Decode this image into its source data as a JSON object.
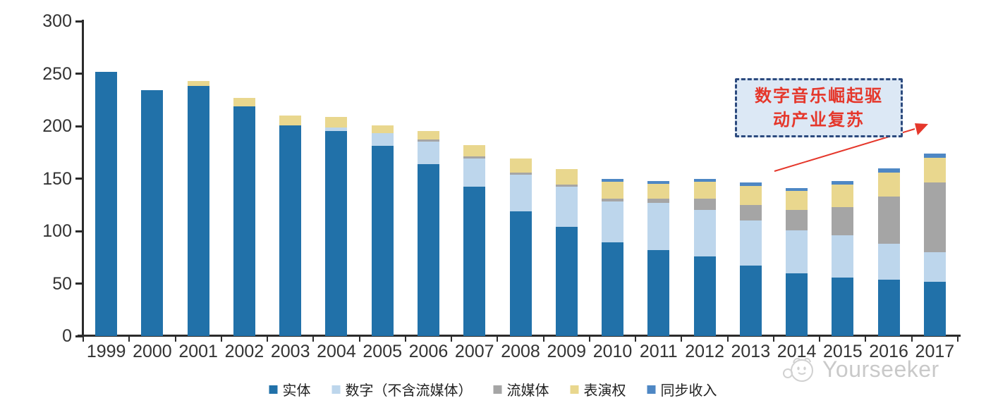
{
  "chart_data": {
    "type": "bar",
    "subtype": "stacked-vertical",
    "title": "",
    "categories": [
      "1999",
      "2000",
      "2001",
      "2002",
      "2003",
      "2004",
      "2005",
      "2006",
      "2007",
      "2008",
      "2009",
      "2010",
      "2011",
      "2012",
      "2013",
      "2014",
      "2015",
      "2016",
      "2017"
    ],
    "series": [
      {
        "key": "physical",
        "name": "实体",
        "color": "#2171a9",
        "values": [
          252,
          234,
          238,
          219,
          201,
          195,
          181,
          164,
          142,
          119,
          104,
          89,
          82,
          76,
          67,
          60,
          56,
          54,
          52
        ]
      },
      {
        "key": "digital-excl-streaming",
        "name": "数字（不含流媒体）",
        "color": "#bdd6ec",
        "values": [
          0,
          0,
          0,
          0,
          0,
          4,
          12,
          21,
          27,
          35,
          38,
          39,
          45,
          44,
          43,
          41,
          40,
          34,
          28
        ]
      },
      {
        "key": "streaming",
        "name": "流媒体",
        "color": "#a5a5a5",
        "values": [
          0,
          0,
          0,
          0,
          0,
          0,
          0,
          2,
          2,
          2,
          2,
          3,
          4,
          11,
          15,
          19,
          27,
          45,
          66
        ]
      },
      {
        "key": "performance-rights",
        "name": "表演权",
        "color": "#e9d78e",
        "values": [
          0,
          0,
          5,
          8,
          9,
          10,
          8,
          8,
          11,
          13,
          15,
          16,
          14,
          16,
          18,
          18,
          21,
          23,
          24
        ]
      },
      {
        "key": "sync-revenue",
        "name": "同步收入",
        "color": "#4e87c4",
        "values": [
          0,
          0,
          0,
          0,
          0,
          0,
          0,
          0,
          0,
          0,
          0,
          3,
          3,
          3,
          3,
          3,
          4,
          4,
          4
        ]
      }
    ],
    "ylim": [
      0,
      300
    ],
    "yticks": [
      0,
      50,
      100,
      150,
      200,
      250,
      300
    ],
    "grid": false,
    "legend_position": "bottom",
    "annotation": {
      "line1": "数字音乐崛起驱",
      "line2": "动产业复苏",
      "text_color": "#e5372b",
      "box_fill": "#dce8f5",
      "box_border": "#2c4a7e",
      "arrow_color": "#e5372b"
    }
  },
  "watermark": {
    "text": "Yourseeker"
  }
}
